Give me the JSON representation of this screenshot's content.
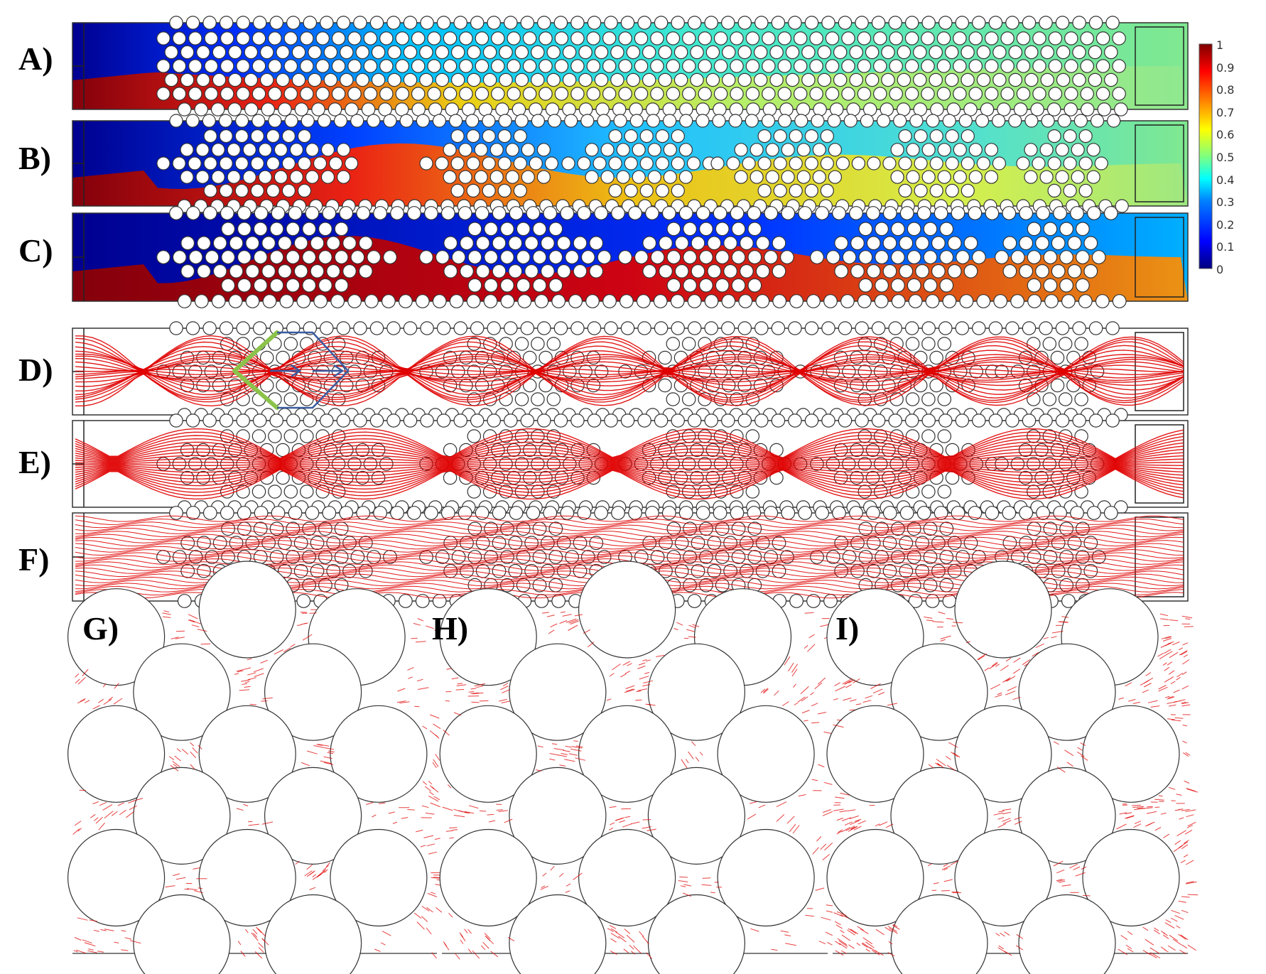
{
  "panels": {
    "a": "A)",
    "b": "B)",
    "c": "C)",
    "d": "D)",
    "e": "E)",
    "f": "F)",
    "g": "G)",
    "h": "H)",
    "i": "I)"
  },
  "colorbar": {
    "ticks": [
      "1",
      "0.9",
      "0.8",
      "0.7",
      "0.6",
      "0.5",
      "0.4",
      "0.3",
      "0.2",
      "0.1",
      "0"
    ],
    "colormap": [
      "#00007f",
      "#0000ff",
      "#007fff",
      "#00ffff",
      "#7fff7f",
      "#ffff00",
      "#ff7f00",
      "#ff0000",
      "#7f0000"
    ]
  },
  "colors": {
    "streamline": "#e00000",
    "green_arrow": "#8bc34a",
    "blue_arrow": "#3a5aa0",
    "outline": "#333333"
  }
}
